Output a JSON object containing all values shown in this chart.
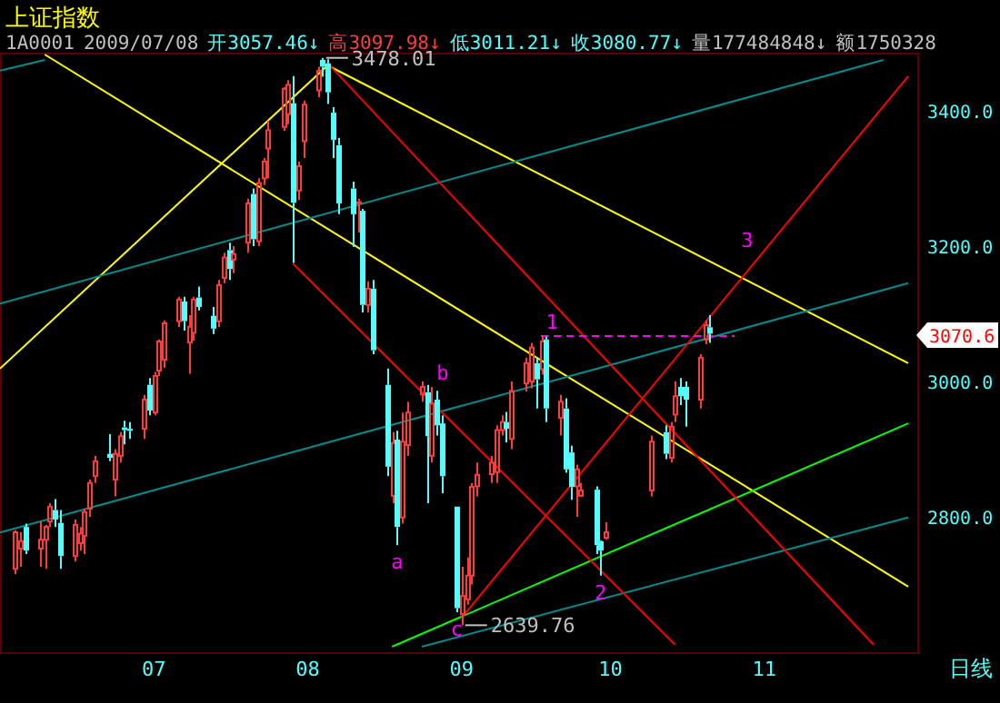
{
  "chart_data": {
    "type": "candlestick",
    "title": "上证指数",
    "annotations": [
      "1A0001",
      "2009/07/08",
      "开3057.46↓",
      "高3097.98↓",
      "低3011.21↓",
      "收3080.77↓",
      "量177484848↓",
      "额1750328",
      "日线",
      "3070.6",
      {
        "text": "3478.01",
        "x": "2009-08-04",
        "y": 3478.01
      },
      {
        "text": "2639.76",
        "x": "2009-09-01",
        "y": 2639.76
      },
      {
        "text": "a",
        "x": "2009-08-19",
        "y": 2758
      },
      {
        "text": "b",
        "x": "2009-08-26",
        "y": 2992
      },
      {
        "text": "c",
        "x": "2009-08-31",
        "y": 2659
      },
      {
        "text": "1",
        "x": "2009-09-17",
        "y": 3067
      },
      {
        "text": "2",
        "x": "2009-09-29",
        "y": 2713
      },
      {
        "text": "3",
        "x": "2009-10-30",
        "y": 3175
      }
    ],
    "x": [
      "2009-06-03",
      "2009-06-04",
      "2009-06-05",
      "2009-06-08",
      "2009-06-09",
      "2009-06-10",
      "2009-06-11",
      "2009-06-12",
      "2009-06-15",
      "2009-06-16",
      "2009-06-17",
      "2009-06-18",
      "2009-06-19",
      "2009-06-22",
      "2009-06-23",
      "2009-06-24",
      "2009-06-25",
      "2009-06-26",
      "2009-06-29",
      "2009-06-30",
      "2009-07-01",
      "2009-07-02",
      "2009-07-03",
      "2009-07-06",
      "2009-07-07",
      "2009-07-08",
      "2009-07-09",
      "2009-07-10",
      "2009-07-13",
      "2009-07-14",
      "2009-07-15",
      "2009-07-16",
      "2009-07-17",
      "2009-07-20",
      "2009-07-21",
      "2009-07-22",
      "2009-07-23",
      "2009-07-24",
      "2009-07-27",
      "2009-07-28",
      "2009-07-29",
      "2009-07-30",
      "2009-07-31",
      "2009-08-03",
      "2009-08-04",
      "2009-08-05",
      "2009-08-06",
      "2009-08-07",
      "2009-08-10",
      "2009-08-11",
      "2009-08-12",
      "2009-08-13",
      "2009-08-14",
      "2009-08-17",
      "2009-08-18",
      "2009-08-19",
      "2009-08-20",
      "2009-08-21",
      "2009-08-24",
      "2009-08-25",
      "2009-08-26",
      "2009-08-27",
      "2009-08-28",
      "2009-08-31",
      "2009-09-01",
      "2009-09-02",
      "2009-09-03",
      "2009-09-04",
      "2009-09-07",
      "2009-09-08",
      "2009-09-09",
      "2009-09-10",
      "2009-09-11",
      "2009-09-14",
      "2009-09-15",
      "2009-09-16",
      "2009-09-17",
      "2009-09-18",
      "2009-09-21",
      "2009-09-22",
      "2009-09-23",
      "2009-09-24",
      "2009-09-25",
      "2009-09-28",
      "2009-09-29",
      "2009-09-30",
      "2009-10-09",
      "2009-10-12",
      "2009-10-13",
      "2009-10-14",
      "2009-10-15",
      "2009-10-16",
      "2009-10-19",
      "2009-10-20",
      "2009-10-21"
    ],
    "ohlc": [
      [
        2723,
        2780,
        2715,
        2777
      ],
      [
        2753,
        2777,
        2726,
        2764
      ],
      [
        2785,
        2790,
        2745,
        2750
      ],
      [
        2753,
        2793,
        2726,
        2766
      ],
      [
        2766,
        2788,
        2723,
        2785
      ],
      [
        2793,
        2820,
        2785,
        2815
      ],
      [
        2810,
        2826,
        2785,
        2796
      ],
      [
        2791,
        2810,
        2723,
        2742
      ],
      [
        2742,
        2796,
        2734,
        2788
      ],
      [
        2761,
        2785,
        2750,
        2775
      ],
      [
        2772,
        2812,
        2745,
        2807
      ],
      [
        2812,
        2855,
        2800,
        2850
      ],
      [
        2860,
        2890,
        2850,
        2882
      ],
      [
        2893,
        2922,
        2882,
        2887
      ],
      [
        2855,
        2900,
        2830,
        2893
      ],
      [
        2890,
        2925,
        2880,
        2919
      ],
      [
        2932,
        2942,
        2907,
        2928
      ],
      [
        2930,
        2940,
        2915,
        2927
      ],
      [
        2930,
        2980,
        2915,
        2973
      ],
      [
        2995,
        3005,
        2950,
        2957
      ],
      [
        2954,
        3014,
        2950,
        3008
      ],
      [
        3016,
        3062,
        3008,
        3059
      ],
      [
        3032,
        3090,
        3020,
        3086
      ],
      [
        3089,
        3125,
        3080,
        3121
      ],
      [
        3118,
        3125,
        3075,
        3089
      ],
      [
        3057.46,
        3097.98,
        3011.21,
        3080.77
      ],
      [
        3072,
        3125,
        3060,
        3121
      ],
      [
        3124,
        3140,
        3105,
        3110
      ],
      [
        3097,
        3110,
        3070,
        3078
      ],
      [
        3089,
        3150,
        3080,
        3142
      ],
      [
        3153,
        3190,
        3145,
        3183
      ],
      [
        3194,
        3205,
        3150,
        3166
      ],
      [
        3180,
        3200,
        3160,
        3188
      ],
      [
        3205,
        3270,
        3190,
        3263
      ],
      [
        3277,
        3285,
        3200,
        3210
      ],
      [
        3207,
        3300,
        3200,
        3293
      ],
      [
        3300,
        3330,
        3290,
        3325
      ],
      [
        3344,
        3385,
        3300,
        3371
      ],
      [
        3376,
        3435,
        3370,
        3432
      ],
      [
        3395,
        3445,
        3380,
        3438
      ],
      [
        3411,
        3451,
        3175,
        3264
      ],
      [
        3282,
        3325,
        3268,
        3318
      ],
      [
        3355,
        3415,
        3330,
        3409
      ],
      [
        3430,
        3465,
        3420,
        3459
      ],
      [
        3475,
        3478.01,
        3450,
        3465
      ],
      [
        3470,
        3476,
        3410,
        3427
      ],
      [
        3397,
        3405,
        3330,
        3357
      ],
      [
        3349,
        3360,
        3247,
        3263
      ],
      [
        3285,
        3295,
        3199,
        3247
      ],
      [
        3262,
        3270,
        3220,
        3266
      ],
      [
        3252,
        3255,
        3102,
        3113
      ],
      [
        3113,
        3148,
        3102,
        3137
      ],
      [
        3137,
        3150,
        3040,
        3046
      ],
      [
        2995,
        3019,
        2860,
        2874
      ],
      [
        2831,
        2925,
        2820,
        2909
      ],
      [
        2914,
        2927,
        2758,
        2785
      ],
      [
        2799,
        2954,
        2790,
        2911
      ],
      [
        2906,
        2970,
        2890,
        2954
      ],
      [
        2981,
        3000,
        2970,
        2992
      ],
      [
        2984,
        2995,
        2820,
        2919
      ],
      [
        2890,
        2992,
        2880,
        2967
      ],
      [
        2973,
        2986,
        2920,
        2935
      ],
      [
        2938,
        2950,
        2835,
        2860
      ],
      [
        2815,
        2815,
        2659,
        2665
      ],
      [
        2656,
        2726,
        2639.76,
        2683
      ],
      [
        2678,
        2740,
        2670,
        2713
      ],
      [
        2713,
        2850,
        2700,
        2844
      ],
      [
        2845,
        2880,
        2830,
        2862
      ],
      [
        2863,
        2890,
        2850,
        2880
      ],
      [
        2866,
        2935,
        2850,
        2928
      ],
      [
        2928,
        2950,
        2920,
        2940
      ],
      [
        2940,
        2955,
        2910,
        2930
      ],
      [
        2915,
        3000,
        2900,
        2986
      ],
      [
        2997,
        3035,
        2985,
        3027
      ],
      [
        3000,
        3057,
        2990,
        3050
      ],
      [
        3027,
        3035,
        2960,
        3003
      ],
      [
        3018,
        3067,
        3010,
        3059
      ],
      [
        3062,
        3066,
        2940,
        2960
      ],
      [
        2946,
        2980,
        2920,
        2970
      ],
      [
        2960,
        2975,
        2865,
        2870
      ],
      [
        2895,
        2905,
        2825,
        2844
      ],
      [
        2845,
        2877,
        2800,
        2870
      ],
      [
        2831,
        2850,
        2830,
        2839
      ],
      [
        2840,
        2845,
        2745,
        2758
      ],
      [
        2764,
        2765,
        2713,
        2750
      ],
      [
        2769,
        2792,
        2766,
        2777
      ],
      [
        2839,
        2920,
        2830,
        2911
      ],
      [
        2925,
        2935,
        2885,
        2893
      ],
      [
        2887,
        2940,
        2880,
        2933
      ],
      [
        2951,
        3000,
        2940,
        2978
      ],
      [
        2992,
        3005,
        2965,
        2978
      ],
      [
        2992,
        3000,
        2933,
        2973
      ],
      [
        2973,
        3040,
        2960,
        3035
      ],
      [
        3062,
        3090,
        3055,
        3083
      ],
      [
        3080,
        3098,
        3057,
        3070.6
      ]
    ],
    "series": [
      {
        "type": "line",
        "color": "#ffff00",
        "x": [
          "2009-08-05",
          "2009-11-30"
        ],
        "values": [
          3467,
          3027
        ]
      },
      {
        "type": "line",
        "color": "#ffff00",
        "x": [
          "2009-06-09",
          "2009-11-30"
        ],
        "values": [
          3483,
          2697
        ]
      },
      {
        "type": "line",
        "color": "#ffff00",
        "x": [
          "2009-05-31",
          "2009-08-05"
        ],
        "values": [
          3019,
          3467
        ]
      },
      {
        "type": "line",
        "color": "#008c8c",
        "x": [
          "2009-05-31",
          "2009-06-09"
        ],
        "values": [
          3459,
          3475
        ]
      },
      {
        "type": "line",
        "color": "#008c8c",
        "x": [
          "2009-05-31",
          "2009-11-25"
        ],
        "values": [
          3115,
          3475
        ]
      },
      {
        "type": "line",
        "color": "#008c8c",
        "x": [
          "2009-05-31",
          "2009-11-30"
        ],
        "values": [
          2777,
          3145
        ]
      },
      {
        "type": "line",
        "color": "#008c8c",
        "x": [
          "2009-08-24",
          "2009-11-30"
        ],
        "values": [
          2608,
          2799
        ]
      },
      {
        "type": "line",
        "color": "#00ff00",
        "x": [
          "2009-08-18",
          "2009-11-30"
        ],
        "values": [
          2608,
          2938
        ]
      },
      {
        "type": "line",
        "color": "#ff0000",
        "x": [
          "2009-08-05",
          "2009-11-23"
        ],
        "values": [
          3470,
          2611
        ]
      },
      {
        "type": "line",
        "color": "#ff0000",
        "x": [
          "2009-07-29",
          "2009-10-14"
        ],
        "values": [
          3174,
          2611
        ]
      },
      {
        "type": "line",
        "color": "#ff0000",
        "x": [
          "2009-09-01",
          "2009-11-30"
        ],
        "values": [
          2651,
          3451
        ]
      },
      {
        "type": "line",
        "color": "#ff00ff",
        "line_style": "dashed",
        "x": [
          "2009-09-17",
          "2009-10-26"
        ],
        "values": [
          3067,
          3067
        ]
      }
    ],
    "xlim": [
      "2009-05-31",
      "2009-12-02"
    ],
    "ylim": [
      2600,
      3483
    ],
    "xticks": [
      {
        "value": "2009-07-01",
        "label": "07"
      },
      {
        "value": "2009-08-01",
        "label": "08"
      },
      {
        "value": "2009-09-01",
        "label": "09"
      },
      {
        "value": "2009-10-01",
        "label": "10"
      },
      {
        "value": "2009-11-01",
        "label": "11"
      }
    ],
    "yticks": [
      {
        "value": 2800,
        "label": "2800.0"
      },
      {
        "value": 3000,
        "label": "3000.0"
      },
      {
        "value": 3200,
        "label": "3200.0"
      },
      {
        "value": 3400,
        "label": "3400.0"
      }
    ]
  }
}
